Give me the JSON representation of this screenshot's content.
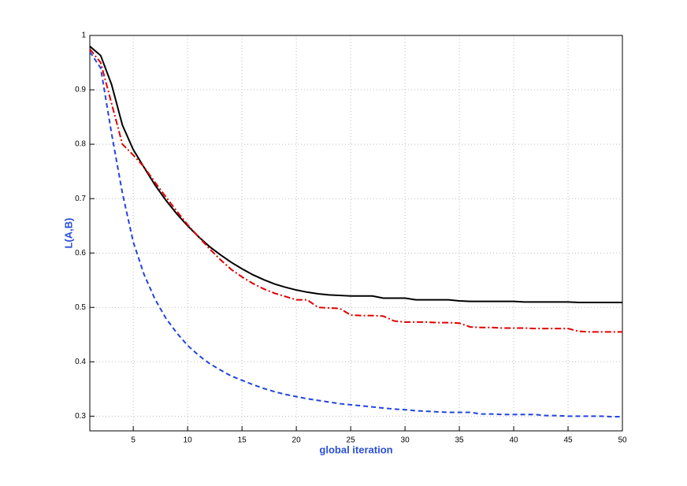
{
  "chart_data": {
    "type": "line",
    "xlabel": "global iteration",
    "ylabel": "L(A,B)",
    "x": [
      1,
      2,
      3,
      4,
      5,
      6,
      7,
      8,
      9,
      10,
      11,
      12,
      13,
      14,
      15,
      16,
      17,
      18,
      19,
      20,
      21,
      22,
      23,
      24,
      25,
      26,
      27,
      28,
      29,
      30,
      31,
      32,
      33,
      34,
      35,
      36,
      37,
      38,
      39,
      40,
      41,
      42,
      43,
      44,
      45,
      46,
      47,
      48,
      49,
      50
    ],
    "series": [
      {
        "color": "#000000",
        "dash": "",
        "values": [
          0.98,
          0.963,
          0.91,
          0.835,
          0.79,
          0.757,
          0.725,
          0.697,
          0.672,
          0.65,
          0.63,
          0.612,
          0.597,
          0.583,
          0.571,
          0.56,
          0.551,
          0.543,
          0.537,
          0.532,
          0.528,
          0.525,
          0.523,
          0.522,
          0.521,
          0.521,
          0.521,
          0.517,
          0.517,
          0.517,
          0.514,
          0.514,
          0.514,
          0.514,
          0.512,
          0.511,
          0.511,
          0.511,
          0.511,
          0.511,
          0.51,
          0.51,
          0.51,
          0.51,
          0.51,
          0.509,
          0.509,
          0.509,
          0.509,
          0.509
        ]
      },
      {
        "color": "#e00000",
        "dash": "8 3 2 3",
        "values": [
          0.975,
          0.95,
          0.875,
          0.8,
          0.78,
          0.758,
          0.73,
          0.703,
          0.677,
          0.652,
          0.63,
          0.608,
          0.588,
          0.57,
          0.556,
          0.544,
          0.534,
          0.526,
          0.52,
          0.514,
          0.514,
          0.5,
          0.499,
          0.498,
          0.486,
          0.485,
          0.485,
          0.484,
          0.475,
          0.473,
          0.473,
          0.473,
          0.472,
          0.472,
          0.471,
          0.464,
          0.463,
          0.463,
          0.462,
          0.462,
          0.462,
          0.461,
          0.461,
          0.461,
          0.461,
          0.456,
          0.455,
          0.455,
          0.455,
          0.455
        ]
      },
      {
        "color": "#2244dd",
        "dash": "6 4",
        "values": [
          0.97,
          0.94,
          0.82,
          0.71,
          0.62,
          0.56,
          0.515,
          0.48,
          0.453,
          0.43,
          0.412,
          0.397,
          0.385,
          0.374,
          0.366,
          0.358,
          0.351,
          0.345,
          0.34,
          0.336,
          0.332,
          0.329,
          0.326,
          0.323,
          0.321,
          0.319,
          0.317,
          0.315,
          0.313,
          0.312,
          0.31,
          0.309,
          0.308,
          0.307,
          0.307,
          0.307,
          0.304,
          0.304,
          0.303,
          0.303,
          0.303,
          0.303,
          0.301,
          0.301,
          0.3,
          0.3,
          0.3,
          0.3,
          0.299,
          0.299
        ]
      }
    ],
    "xlim": [
      1,
      50
    ],
    "ylim": [
      0.273,
      1
    ],
    "xticks": [
      5,
      10,
      15,
      20,
      25,
      30,
      35,
      40,
      45,
      50
    ],
    "yticks": [
      0.3,
      0.4,
      0.5,
      0.6,
      0.7,
      0.8,
      0.9,
      1
    ],
    "grid": true
  }
}
